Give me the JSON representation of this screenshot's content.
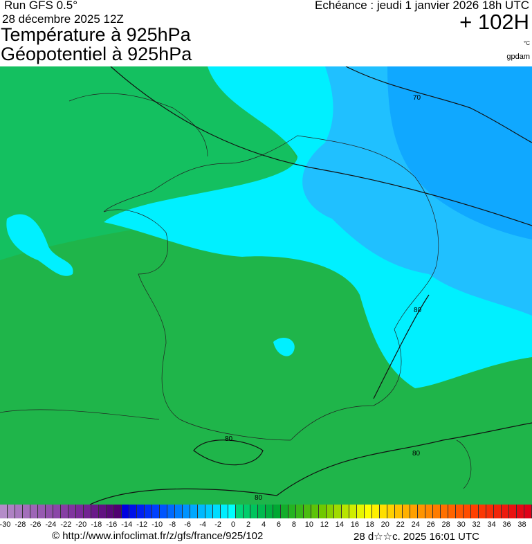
{
  "header": {
    "run": "Run GFS 0.5°",
    "run_date": "28 décembre 2025 12Z",
    "title_line1": "Température à 925hPa",
    "title_line2": "Géopotentiel à 925hPa",
    "echeance": "Echéance : jeudi 1 janvier 2026 18h UTC",
    "lead_time": "+ 102H",
    "unit_temp": "°C",
    "unit_geo": "gpdam"
  },
  "map": {
    "region": "France",
    "contour_labels": [
      "70",
      "80",
      "80",
      "80",
      "80"
    ],
    "colors": {
      "warm": "#1fb54a",
      "mid": "#00d67a",
      "cold": "#00f0ff",
      "colder": "#18b8ff",
      "coldest": "#1aa0ff"
    }
  },
  "colorbar": {
    "min": -30,
    "max": 40,
    "step": 1,
    "tick_labels": [
      "-30",
      "-28",
      "-26",
      "-24",
      "-22",
      "-20",
      "-18",
      "-16",
      "-14",
      "-12",
      "-10",
      "-8",
      "-6",
      "-4",
      "-2",
      "0",
      "2",
      "4",
      "6",
      "8",
      "10",
      "12",
      "14",
      "16",
      "18",
      "20",
      "22",
      "24",
      "26",
      "28",
      "30",
      "32",
      "34",
      "36",
      "38"
    ],
    "stops": [
      [
        -30,
        "#b48cc8"
      ],
      [
        -20,
        "#7a2a9a"
      ],
      [
        -15,
        "#500070"
      ],
      [
        -14,
        "#0000e0"
      ],
      [
        -10,
        "#0040ff"
      ],
      [
        -5,
        "#00a8ff"
      ],
      [
        0,
        "#00ffff"
      ],
      [
        1,
        "#00d67a"
      ],
      [
        6,
        "#00a832"
      ],
      [
        12,
        "#70c800"
      ],
      [
        18,
        "#ffff00"
      ],
      [
        24,
        "#ffa000"
      ],
      [
        32,
        "#ff4000"
      ],
      [
        39,
        "#e00018"
      ]
    ]
  },
  "footer": {
    "url": "© http://www.infoclimat.fr/z/gfs/france/925/102",
    "generated": "28 d☆☆c. 2025 16:01 UTC"
  }
}
